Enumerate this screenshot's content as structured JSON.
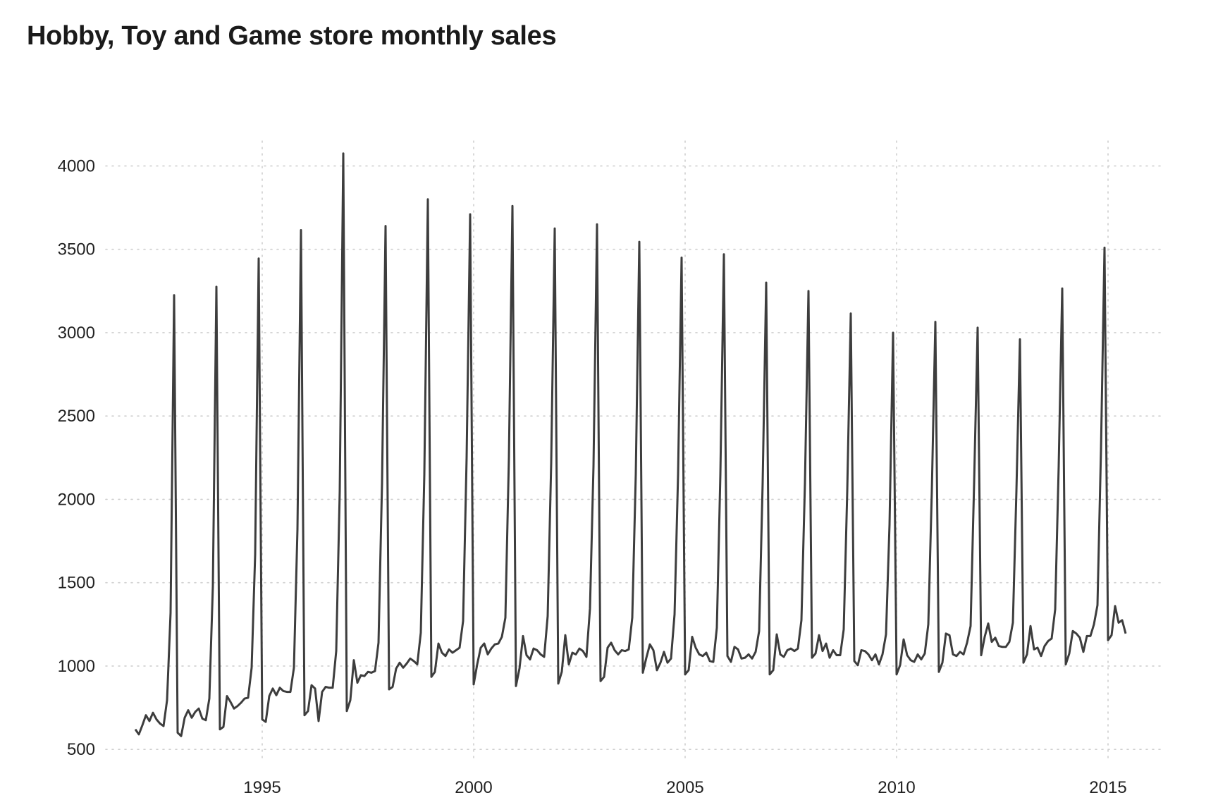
{
  "chart_data": {
    "type": "line",
    "title": "Hobby, Toy and Game store monthly sales",
    "xlabel": "",
    "ylabel": "",
    "xlim": [
      1991.3,
      2016.3
    ],
    "ylim": [
      450,
      4150
    ],
    "x_ticks": [
      1995,
      2000,
      2005,
      2010,
      2015
    ],
    "x_tick_labels": [
      "1995",
      "2000",
      "2005",
      "2010",
      "2015"
    ],
    "y_ticks": [
      500,
      1000,
      1500,
      2000,
      2500,
      3000,
      3500,
      4000
    ],
    "y_tick_labels": [
      "500",
      "1000",
      "1500",
      "2000",
      "2500",
      "3000",
      "3500",
      "4000"
    ],
    "grid": true,
    "legend": "none",
    "line_color": "#3d3d3d",
    "series": [
      {
        "start": "1992-01",
        "frequency": "monthly",
        "values": [
          620,
          590,
          645,
          705,
          670,
          720,
          680,
          655,
          640,
          795,
          1320,
          3225,
          600,
          580,
          690,
          735,
          690,
          725,
          745,
          685,
          675,
          805,
          1480,
          3275,
          620,
          635,
          820,
          785,
          745,
          760,
          780,
          805,
          810,
          990,
          1670,
          3445,
          680,
          665,
          820,
          865,
          825,
          870,
          850,
          845,
          845,
          990,
          1820,
          3615,
          705,
          730,
          885,
          865,
          670,
          845,
          875,
          870,
          870,
          1090,
          2050,
          4075,
          730,
          795,
          1035,
          900,
          945,
          940,
          965,
          960,
          970,
          1140,
          2100,
          3640,
          860,
          875,
          985,
          1020,
          990,
          1015,
          1045,
          1030,
          1010,
          1200,
          2150,
          3800,
          935,
          965,
          1135,
          1080,
          1060,
          1100,
          1080,
          1095,
          1110,
          1270,
          2250,
          3710,
          890,
          1010,
          1110,
          1135,
          1070,
          1105,
          1130,
          1135,
          1175,
          1290,
          2250,
          3760,
          880,
          985,
          1180,
          1065,
          1040,
          1105,
          1095,
          1070,
          1055,
          1300,
          2220,
          3625,
          895,
          965,
          1185,
          1010,
          1080,
          1070,
          1105,
          1090,
          1055,
          1345,
          2200,
          3650,
          910,
          935,
          1110,
          1140,
          1095,
          1070,
          1095,
          1090,
          1100,
          1290,
          2150,
          3545,
          960,
          1050,
          1130,
          1095,
          975,
          1020,
          1085,
          1020,
          1045,
          1310,
          2150,
          3450,
          950,
          975,
          1175,
          1110,
          1070,
          1060,
          1080,
          1030,
          1025,
          1230,
          2150,
          3470,
          1060,
          1025,
          1115,
          1100,
          1045,
          1050,
          1070,
          1045,
          1085,
          1210,
          2100,
          3300,
          950,
          975,
          1190,
          1070,
          1055,
          1095,
          1105,
          1090,
          1105,
          1275,
          2100,
          3250,
          1050,
          1075,
          1185,
          1090,
          1135,
          1050,
          1095,
          1065,
          1065,
          1220,
          2050,
          3115,
          1030,
          1005,
          1095,
          1090,
          1070,
          1035,
          1070,
          1010,
          1070,
          1190,
          1850,
          3000,
          950,
          1005,
          1160,
          1065,
          1035,
          1025,
          1070,
          1040,
          1075,
          1250,
          2050,
          3065,
          965,
          1020,
          1195,
          1185,
          1070,
          1060,
          1085,
          1070,
          1140,
          1240,
          2100,
          3030,
          1065,
          1175,
          1255,
          1145,
          1170,
          1120,
          1115,
          1115,
          1145,
          1260,
          2050,
          2960,
          1020,
          1070,
          1240,
          1100,
          1110,
          1060,
          1120,
          1150,
          1165,
          1340,
          2200,
          3265,
          1010,
          1075,
          1210,
          1195,
          1170,
          1085,
          1180,
          1180,
          1250,
          1365,
          2300,
          3510,
          1155,
          1185,
          1360,
          1260,
          1275,
          1195
        ]
      }
    ]
  }
}
